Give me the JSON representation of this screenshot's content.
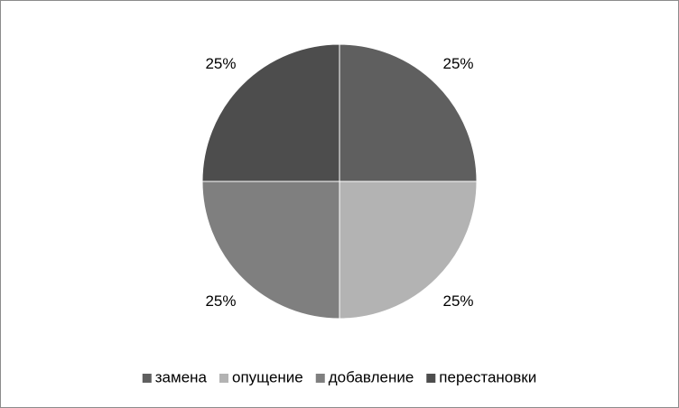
{
  "chart_data": {
    "type": "pie",
    "categories": [
      "замена",
      "опущение",
      "добавление",
      "перестановки"
    ],
    "values": [
      25,
      25,
      25,
      25
    ],
    "value_labels": [
      "25%",
      "25%",
      "25%",
      "25%"
    ],
    "colors": [
      "#5f5f5f",
      "#b3b3b3",
      "#7f7f7f",
      "#4d4d4d"
    ],
    "legend": "bottom"
  }
}
